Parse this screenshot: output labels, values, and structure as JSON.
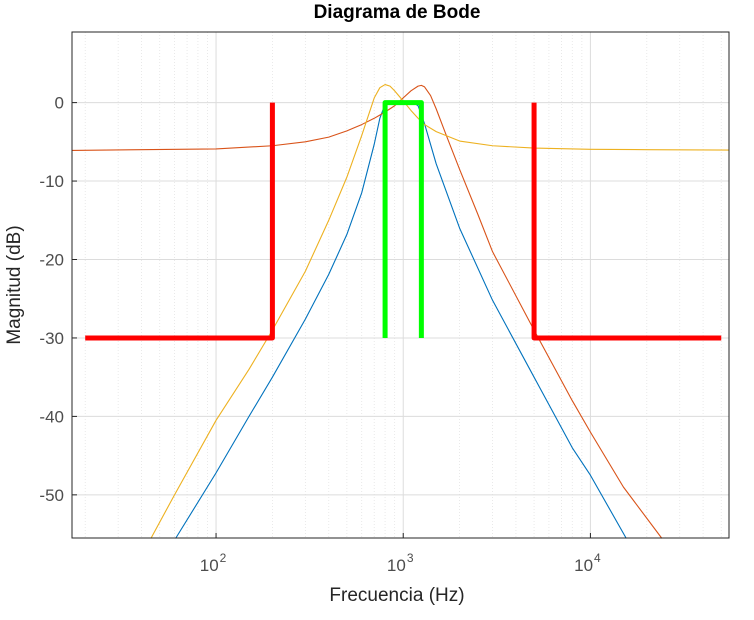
{
  "chart_data": {
    "type": "line",
    "title": "Diagrama de Bode",
    "xlabel": "Frecuencia  (Hz)",
    "ylabel": "Magnitud (dB)",
    "xscale": "log",
    "xlim": [
      17,
      55000
    ],
    "ylim": [
      -55.5,
      9
    ],
    "grid": true,
    "minor_grid_x": true,
    "yticks": [
      0,
      -10,
      -20,
      -30,
      -40,
      -50
    ],
    "yticklabels": [
      "0",
      "-10",
      "-20",
      "-30",
      "-40",
      "-50"
    ],
    "xticks": [
      {
        "value": 100,
        "base": "10",
        "exp": "2"
      },
      {
        "value": 1000,
        "base": "10",
        "exp": "3"
      },
      {
        "value": 10000,
        "base": "10",
        "exp": "4"
      }
    ],
    "colors": {
      "blue": "#0072BD",
      "orange": "#D95319",
      "yellow": "#EDB120",
      "red": "#FF0000",
      "green": "#00FF00"
    },
    "series": [
      {
        "name": "bandpass-response",
        "color": "#0072BD",
        "style": "thin",
        "x": [
          61,
          100,
          150,
          200,
          300,
          400,
          500,
          600,
          700,
          750,
          800,
          900,
          1000,
          1100,
          1150,
          1200,
          1300,
          1500,
          2000,
          3000,
          5000,
          8000,
          10000,
          15500
        ],
        "y": [
          -55.5,
          -47.2,
          -40.0,
          -35.0,
          -27.6,
          -21.9,
          -16.8,
          -11.5,
          -5.3,
          -2.0,
          -0.2,
          -0.1,
          0.0,
          0.0,
          -0.1,
          -0.4,
          -2.7,
          -7.8,
          -16.0,
          -25.2,
          -35.0,
          -44.0,
          -47.5,
          -55.5
        ]
      },
      {
        "name": "peaking-response-high",
        "color": "#D95319",
        "style": "thin",
        "x": [
          17,
          100,
          200,
          300,
          400,
          500,
          600,
          700,
          800,
          900,
          1000,
          1100,
          1200,
          1250,
          1300,
          1400,
          1500,
          1700,
          2000,
          2500,
          3000,
          5000,
          8000,
          10000,
          15000,
          24000
        ],
        "y": [
          -6.1,
          -5.9,
          -5.5,
          -5.0,
          -4.4,
          -3.6,
          -2.8,
          -2.0,
          -1.2,
          -0.4,
          0.6,
          1.5,
          2.1,
          2.2,
          2.0,
          0.9,
          -0.8,
          -4.2,
          -8.5,
          -14.2,
          -19.0,
          -29.0,
          -38.0,
          -42.0,
          -49.0,
          -55.5
        ]
      },
      {
        "name": "peaking-response-low",
        "color": "#EDB120",
        "style": "thin",
        "x": [
          45,
          60,
          100,
          150,
          200,
          300,
          400,
          500,
          600,
          700,
          750,
          800,
          850,
          900,
          1000,
          1100,
          1200,
          1300,
          1500,
          2000,
          3000,
          5000,
          10000,
          20000,
          55000
        ],
        "y": [
          -55.5,
          -50.0,
          -40.5,
          -34.0,
          -29.0,
          -21.5,
          -15.0,
          -9.5,
          -4.2,
          0.6,
          1.9,
          2.3,
          2.1,
          1.5,
          0.2,
          -1.0,
          -2.0,
          -2.8,
          -3.7,
          -4.9,
          -5.5,
          -5.8,
          -5.95,
          -6.0,
          -6.05
        ]
      },
      {
        "name": "red-spec-mask-left",
        "color": "#FF0000",
        "style": "thick",
        "x": [
          20,
          200,
          200
        ],
        "y": [
          -30,
          -30,
          0
        ]
      },
      {
        "name": "red-spec-mask-right",
        "color": "#FF0000",
        "style": "thick",
        "x": [
          5000,
          5000,
          50000
        ],
        "y": [
          0,
          -30,
          -30
        ]
      },
      {
        "name": "green-spec-mask",
        "color": "#00FF00",
        "style": "thick",
        "x": [
          800,
          800,
          1250,
          1250
        ],
        "y": [
          -30,
          0,
          0,
          -30
        ]
      }
    ]
  }
}
